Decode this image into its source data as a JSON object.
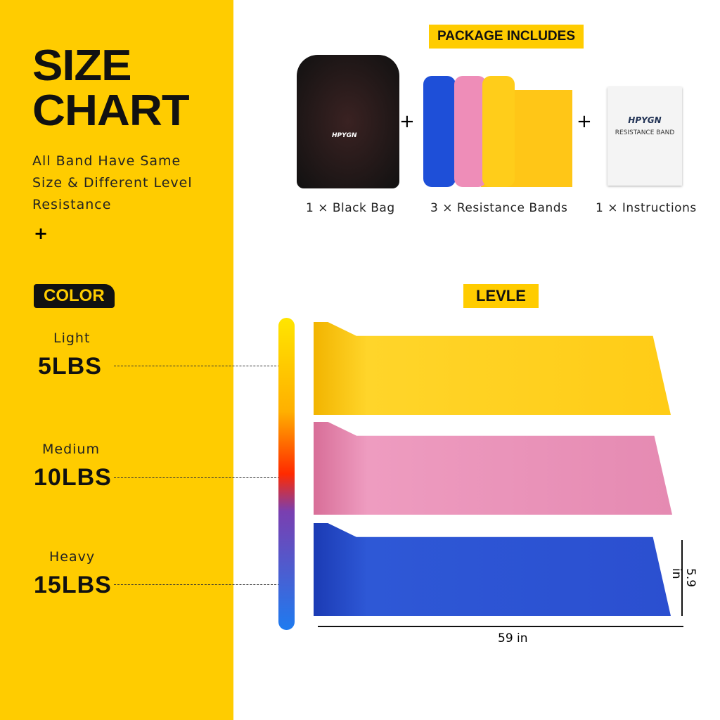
{
  "left": {
    "title_line1": "SIZE",
    "title_line2": "CHART",
    "description": [
      "All Band Have Same",
      "Size & Different Level",
      "Resistance"
    ],
    "plus": "+",
    "color_tag": "COLOR",
    "levels": [
      {
        "name": "Light",
        "weight": "5LBS",
        "color": "#F9C80E"
      },
      {
        "name": "Medium",
        "weight": "10LBS",
        "color": "#E68AB0"
      },
      {
        "name": "Heavy",
        "weight": "15LBS",
        "color": "#2B4FD0"
      }
    ]
  },
  "package": {
    "tag": "PACKAGE INCLUDES",
    "plus": "+",
    "items": [
      {
        "caption": "1 × Black Bag"
      },
      {
        "caption": "3 × Resistance Bands"
      },
      {
        "caption": "1 × Instructions"
      }
    ],
    "brand": "HPYGN",
    "manual_title": "RESISTANCE BAND"
  },
  "level_tag": "LEVLE",
  "dimensions": {
    "width": "59 in",
    "height": "5.9 in"
  },
  "colors": {
    "accent": "#FFCC00"
  }
}
